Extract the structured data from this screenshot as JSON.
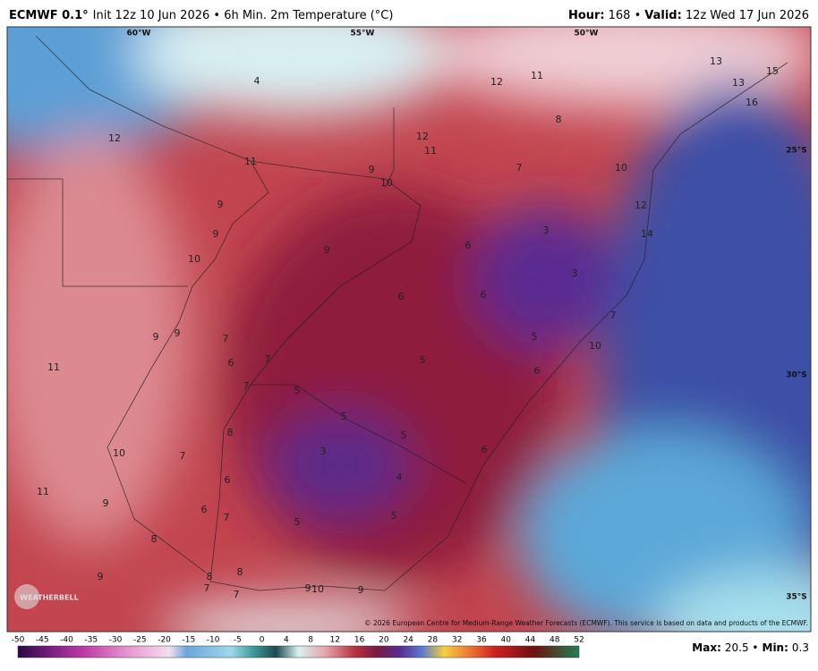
{
  "header": {
    "model": "ECMWF 0.1°",
    "subtitle": "Init 12z 10 Jun 2026 • 6h Min. 2m Temperature (°C)",
    "hour_label": "Hour:",
    "hour": "168 •",
    "valid_label": "Valid:",
    "valid": "12z Wed 17 Jun 2026"
  },
  "graticule": [
    "60°W",
    "55°W",
    "50°W",
    "25°S",
    "30°S",
    "35°S"
  ],
  "map_labels": [
    4,
    12,
    11,
    13,
    15,
    13,
    16,
    8,
    12,
    12,
    11,
    11,
    9,
    7,
    10,
    10,
    9,
    12,
    9,
    3,
    14,
    6,
    9,
    10,
    3,
    6,
    6,
    7,
    9,
    9,
    7,
    5,
    10,
    6,
    7,
    5,
    11,
    6,
    7,
    5,
    5,
    5,
    8,
    3,
    6,
    10,
    7,
    6,
    4,
    11,
    9,
    6,
    7,
    5,
    5,
    8,
    8,
    9,
    8,
    7,
    7,
    9,
    10,
    9
  ],
  "logo": "WEATHERBELL",
  "copyright": "© 2026 European Centre for Medium-Range Weather Forecasts (ECMWF). This service is based on data and products of the ECMWF.",
  "colorbar": {
    "ticks": [
      -50,
      -45,
      -40,
      -35,
      -30,
      -25,
      -20,
      -15,
      -10,
      -5,
      0,
      4,
      8,
      12,
      16,
      20,
      24,
      28,
      32,
      36,
      40,
      44,
      48,
      52
    ]
  },
  "stats": {
    "max_label": "Max:",
    "max": "20.5 •",
    "min_label": "Min:",
    "min": "0.3"
  }
}
